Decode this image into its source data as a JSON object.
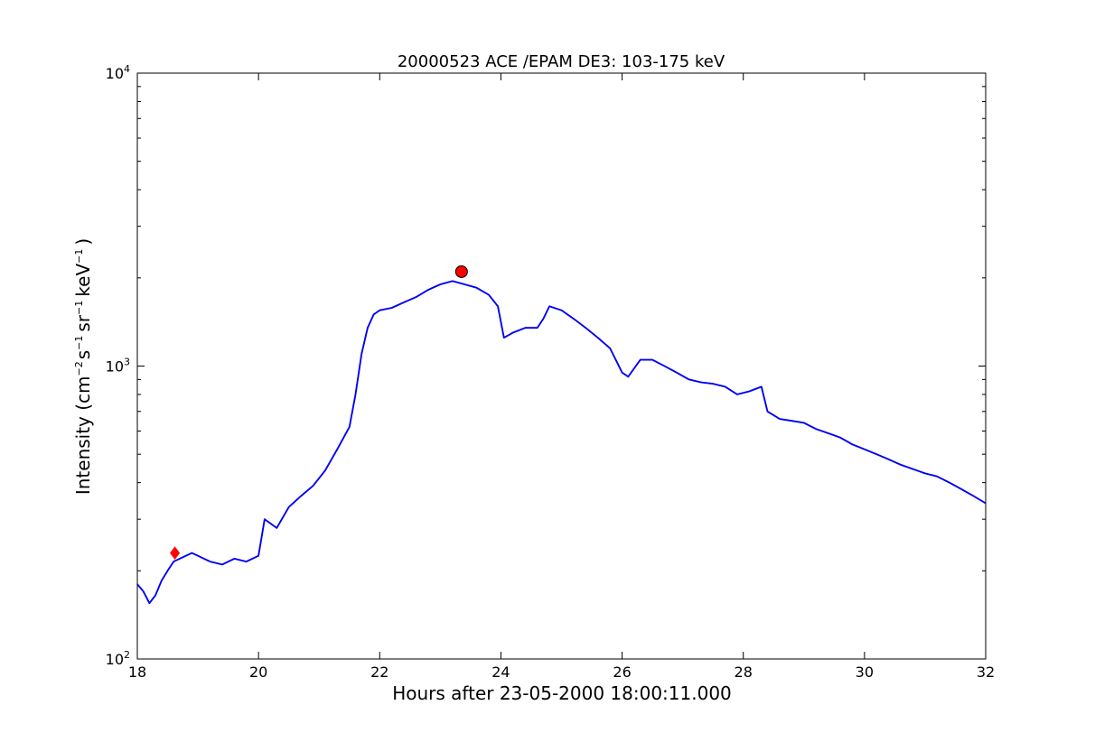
{
  "chart_data": {
    "type": "line",
    "title": "20000523 ACE /EPAM DE3: 103-175 keV",
    "xlabel": "Hours after 23-05-2000 18:00:11.000",
    "ylabel": {
      "main": "Intensity (cm",
      "sup1": "−2",
      "part2": "s",
      "sup2": "−1",
      "part3": "sr",
      "sup3": "−1",
      "part4": "keV",
      "sup4": "−1",
      "end": ")"
    },
    "xlim": [
      18,
      32
    ],
    "ylim": [
      100,
      10000
    ],
    "yscale": "log",
    "grid": false,
    "x_ticks": [
      18,
      20,
      22,
      24,
      26,
      28,
      30,
      32
    ],
    "x_tick_labels": [
      "18",
      "20",
      "22",
      "24",
      "26",
      "28",
      "30",
      "32"
    ],
    "y_tick_labels": [
      {
        "value": 100,
        "base": "10",
        "exp": "2"
      },
      {
        "value": 1000,
        "base": "10",
        "exp": "3"
      },
      {
        "value": 10000,
        "base": "10",
        "exp": "4"
      }
    ],
    "series": [
      {
        "style": "raw",
        "color": "#000000",
        "x": [
          18.0,
          18.1,
          18.2,
          18.3,
          18.4,
          18.5,
          18.6,
          18.7,
          18.8,
          18.9,
          19.0,
          19.2,
          19.4,
          19.6,
          19.8,
          20.0,
          20.1,
          20.3,
          20.5,
          20.7,
          20.9,
          21.1,
          21.3,
          21.5,
          21.6,
          21.7,
          21.8,
          21.9,
          22.0,
          22.2,
          22.4,
          22.6,
          22.8,
          23.0,
          23.2,
          23.4,
          23.6,
          23.8,
          23.95,
          24.05,
          24.2,
          24.4,
          24.6,
          24.7,
          24.8,
          25.0,
          25.2,
          25.4,
          25.6,
          25.8,
          26.0,
          26.1,
          26.3,
          26.5,
          26.7,
          26.9,
          27.1,
          27.3,
          27.5,
          27.7,
          27.9,
          28.1,
          28.3,
          28.4,
          28.6,
          28.8,
          29.0,
          29.2,
          29.4,
          29.6,
          29.8,
          30.0,
          30.2,
          30.4,
          30.6,
          30.8,
          31.0,
          31.2,
          31.4,
          31.6,
          31.8,
          32.0
        ],
        "y": [
          180,
          170,
          155,
          165,
          185,
          200,
          215,
          220,
          225,
          230,
          225,
          215,
          210,
          220,
          215,
          225,
          300,
          280,
          330,
          360,
          390,
          440,
          520,
          620,
          800,
          1100,
          1350,
          1500,
          1550,
          1580,
          1650,
          1720,
          1820,
          1900,
          1950,
          1900,
          1850,
          1750,
          1600,
          1250,
          1300,
          1350,
          1350,
          1450,
          1600,
          1550,
          1450,
          1350,
          1250,
          1150,
          950,
          920,
          1050,
          1050,
          1000,
          950,
          900,
          880,
          870,
          850,
          800,
          820,
          850,
          700,
          660,
          650,
          640,
          610,
          590,
          570,
          540,
          520,
          500,
          480,
          460,
          445,
          430,
          420,
          400,
          380,
          360,
          340
        ]
      },
      {
        "style": "smoothed",
        "color": "#0000ff",
        "x": [
          18.0,
          18.1,
          18.2,
          18.3,
          18.4,
          18.5,
          18.6,
          18.7,
          18.8,
          18.9,
          19.0,
          19.2,
          19.4,
          19.6,
          19.8,
          20.0,
          20.1,
          20.3,
          20.5,
          20.7,
          20.9,
          21.1,
          21.3,
          21.5,
          21.6,
          21.7,
          21.8,
          21.9,
          22.0,
          22.2,
          22.4,
          22.6,
          22.8,
          23.0,
          23.2,
          23.4,
          23.6,
          23.8,
          23.95,
          24.05,
          24.2,
          24.4,
          24.6,
          24.7,
          24.8,
          25.0,
          25.2,
          25.4,
          25.6,
          25.8,
          26.0,
          26.1,
          26.3,
          26.5,
          26.7,
          26.9,
          27.1,
          27.3,
          27.5,
          27.7,
          27.9,
          28.1,
          28.3,
          28.4,
          28.6,
          28.8,
          29.0,
          29.2,
          29.4,
          29.6,
          29.8,
          30.0,
          30.2,
          30.4,
          30.6,
          30.8,
          31.0,
          31.2,
          31.4,
          31.6,
          31.8,
          32.0
        ],
        "y": [
          180,
          170,
          155,
          165,
          185,
          200,
          215,
          220,
          225,
          230,
          225,
          215,
          210,
          220,
          215,
          225,
          300,
          280,
          330,
          360,
          390,
          440,
          520,
          620,
          800,
          1100,
          1350,
          1500,
          1550,
          1580,
          1650,
          1720,
          1820,
          1900,
          1950,
          1900,
          1850,
          1750,
          1600,
          1250,
          1300,
          1350,
          1350,
          1450,
          1600,
          1550,
          1450,
          1350,
          1250,
          1150,
          950,
          920,
          1050,
          1050,
          1000,
          950,
          900,
          880,
          870,
          850,
          800,
          820,
          850,
          700,
          660,
          650,
          640,
          610,
          590,
          570,
          540,
          520,
          500,
          480,
          460,
          445,
          430,
          420,
          400,
          380,
          360,
          340
        ]
      }
    ],
    "markers": [
      {
        "shape": "diamond",
        "x": 18.62,
        "y": 230,
        "color": "#ff0000"
      },
      {
        "shape": "circle",
        "x": 23.35,
        "y": 2100,
        "color": "#ff0000"
      }
    ]
  }
}
